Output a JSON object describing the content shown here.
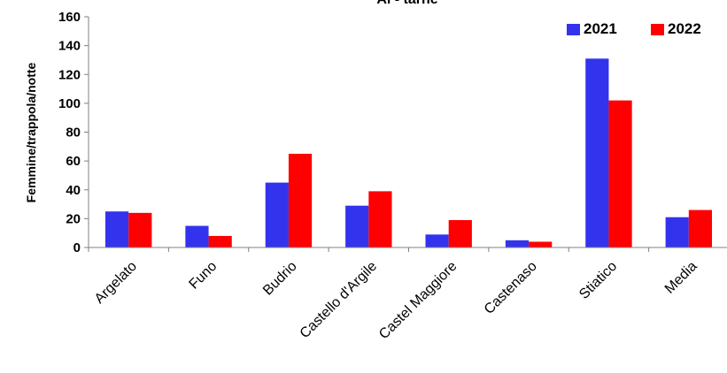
{
  "chart_data": {
    "type": "bar",
    "title": "Al - tarne",
    "ylabel": "Femmine/trappola/notte",
    "xlabel": "",
    "ylim": [
      0,
      160
    ],
    "yticks": [
      0,
      20,
      40,
      60,
      80,
      100,
      120,
      140,
      160
    ],
    "grid": false,
    "legend_position": "top-right",
    "categories": [
      "Argelato",
      "Funo",
      "Budrio",
      "Castello d'Argile",
      "Castel Maggiore",
      "Castenaso",
      "Stiatico",
      "Media"
    ],
    "series": [
      {
        "name": "2021",
        "color": "#3333ee",
        "values": [
          25,
          15,
          45,
          29,
          9,
          5,
          131,
          21
        ]
      },
      {
        "name": "2022",
        "color": "#ff0000",
        "values": [
          24,
          8,
          65,
          39,
          19,
          4,
          102,
          26
        ]
      }
    ]
  }
}
